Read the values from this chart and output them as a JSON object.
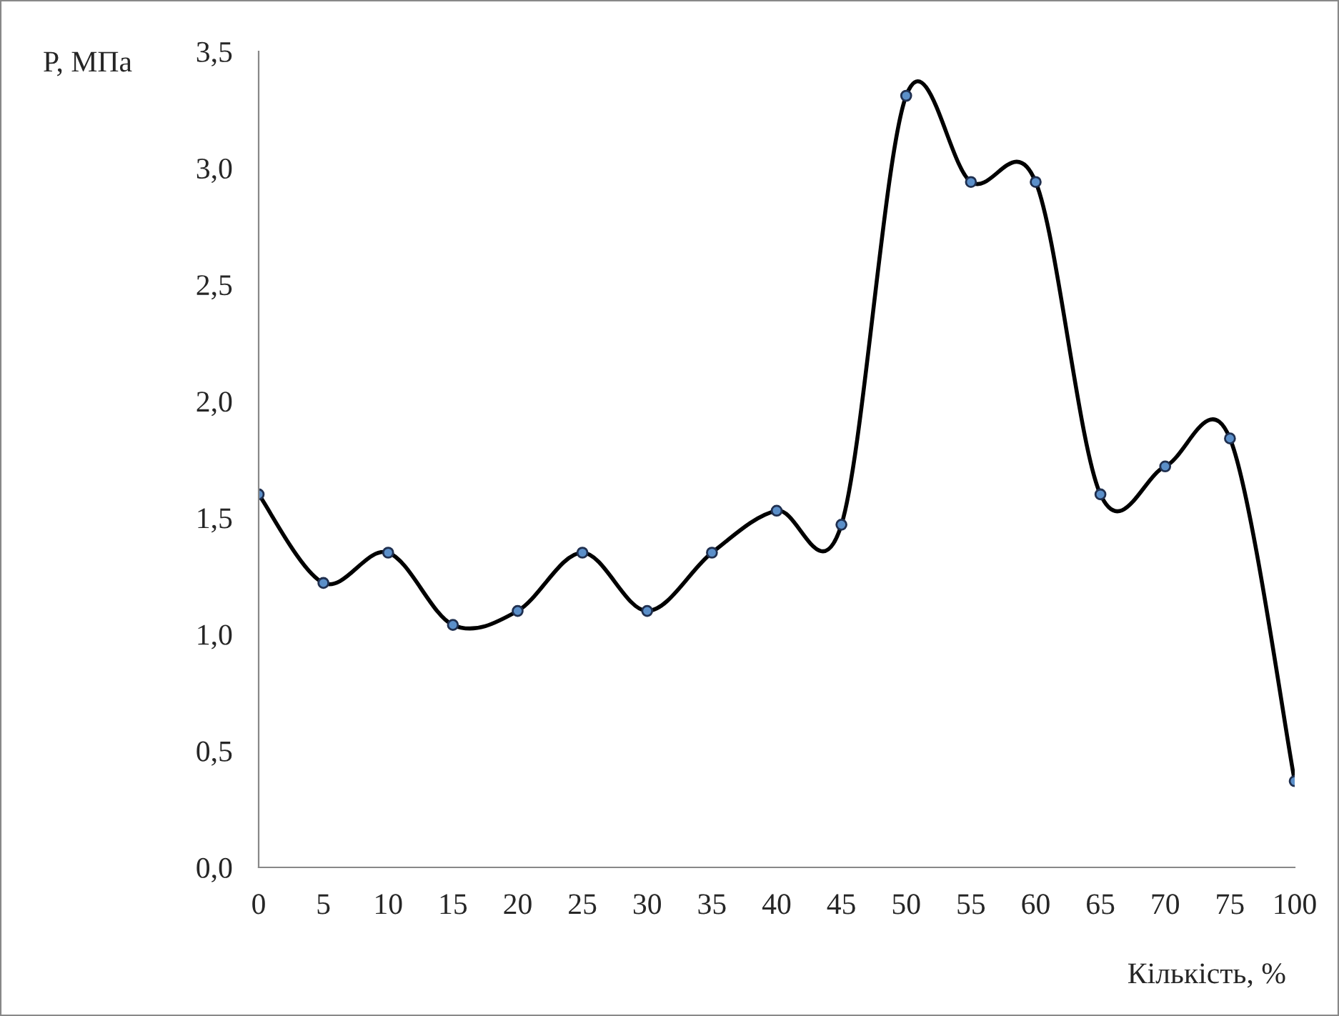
{
  "chart_data": {
    "type": "line",
    "ylabel": "P, МПа",
    "xlabel": "Кількість, %",
    "categories": [
      "0",
      "5",
      "10",
      "15",
      "20",
      "25",
      "30",
      "35",
      "40",
      "45",
      "50",
      "55",
      "60",
      "65",
      "70",
      "75",
      "100"
    ],
    "series": [
      {
        "color": "#000000",
        "values": [
          1.6,
          1.22,
          1.35,
          1.04,
          1.1,
          1.35,
          1.1,
          1.35,
          1.53,
          1.47,
          3.31,
          2.94,
          2.94,
          1.6,
          1.72,
          1.84,
          0.37
        ]
      }
    ],
    "ylim": [
      0,
      3.5
    ],
    "yticks": [
      {
        "value": 0,
        "label": "0,0"
      },
      {
        "value": 0.5,
        "label": "0,5"
      },
      {
        "value": 1,
        "label": "1,0"
      },
      {
        "value": 1.5,
        "label": "1,5"
      },
      {
        "value": 2,
        "label": "2,0"
      },
      {
        "value": 2.5,
        "label": "2,5"
      },
      {
        "value": 3,
        "label": "3,0"
      },
      {
        "value": 3.5,
        "label": "3,5"
      }
    ],
    "grid": false,
    "legend": false,
    "marker": "circle",
    "line_style": "solid"
  }
}
